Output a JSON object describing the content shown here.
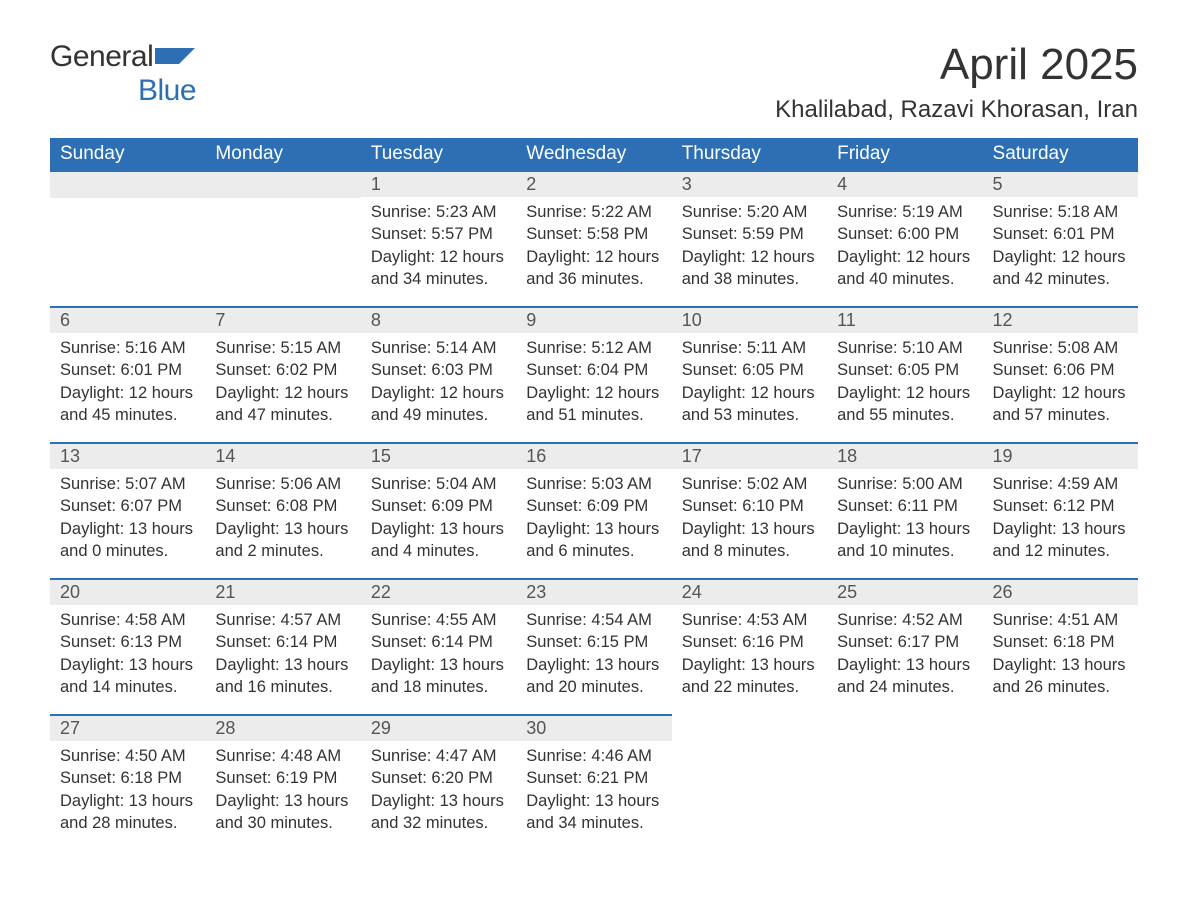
{
  "logo": {
    "line1": "General",
    "line2": "Blue",
    "icon_color": "#2d6fb4"
  },
  "header": {
    "month_title": "April 2025",
    "location": "Khalilabad, Razavi Khorasan, Iran"
  },
  "colors": {
    "header_bg": "#2d6fb4",
    "header_fg": "#ffffff",
    "daynum_bg": "#ececec",
    "row_border": "#2d6fb4",
    "text": "#333333",
    "page_bg": "#ffffff"
  },
  "weekdays": [
    "Sunday",
    "Monday",
    "Tuesday",
    "Wednesday",
    "Thursday",
    "Friday",
    "Saturday"
  ],
  "label_sunrise": "Sunrise: ",
  "label_sunset": "Sunset: ",
  "label_daylight": "Daylight: ",
  "weeks": [
    [
      null,
      null,
      {
        "n": "1",
        "sunrise": "5:23 AM",
        "sunset": "5:57 PM",
        "daylight": "12 hours and 34 minutes."
      },
      {
        "n": "2",
        "sunrise": "5:22 AM",
        "sunset": "5:58 PM",
        "daylight": "12 hours and 36 minutes."
      },
      {
        "n": "3",
        "sunrise": "5:20 AM",
        "sunset": "5:59 PM",
        "daylight": "12 hours and 38 minutes."
      },
      {
        "n": "4",
        "sunrise": "5:19 AM",
        "sunset": "6:00 PM",
        "daylight": "12 hours and 40 minutes."
      },
      {
        "n": "5",
        "sunrise": "5:18 AM",
        "sunset": "6:01 PM",
        "daylight": "12 hours and 42 minutes."
      }
    ],
    [
      {
        "n": "6",
        "sunrise": "5:16 AM",
        "sunset": "6:01 PM",
        "daylight": "12 hours and 45 minutes."
      },
      {
        "n": "7",
        "sunrise": "5:15 AM",
        "sunset": "6:02 PM",
        "daylight": "12 hours and 47 minutes."
      },
      {
        "n": "8",
        "sunrise": "5:14 AM",
        "sunset": "6:03 PM",
        "daylight": "12 hours and 49 minutes."
      },
      {
        "n": "9",
        "sunrise": "5:12 AM",
        "sunset": "6:04 PM",
        "daylight": "12 hours and 51 minutes."
      },
      {
        "n": "10",
        "sunrise": "5:11 AM",
        "sunset": "6:05 PM",
        "daylight": "12 hours and 53 minutes."
      },
      {
        "n": "11",
        "sunrise": "5:10 AM",
        "sunset": "6:05 PM",
        "daylight": "12 hours and 55 minutes."
      },
      {
        "n": "12",
        "sunrise": "5:08 AM",
        "sunset": "6:06 PM",
        "daylight": "12 hours and 57 minutes."
      }
    ],
    [
      {
        "n": "13",
        "sunrise": "5:07 AM",
        "sunset": "6:07 PM",
        "daylight": "13 hours and 0 minutes."
      },
      {
        "n": "14",
        "sunrise": "5:06 AM",
        "sunset": "6:08 PM",
        "daylight": "13 hours and 2 minutes."
      },
      {
        "n": "15",
        "sunrise": "5:04 AM",
        "sunset": "6:09 PM",
        "daylight": "13 hours and 4 minutes."
      },
      {
        "n": "16",
        "sunrise": "5:03 AM",
        "sunset": "6:09 PM",
        "daylight": "13 hours and 6 minutes."
      },
      {
        "n": "17",
        "sunrise": "5:02 AM",
        "sunset": "6:10 PM",
        "daylight": "13 hours and 8 minutes."
      },
      {
        "n": "18",
        "sunrise": "5:00 AM",
        "sunset": "6:11 PM",
        "daylight": "13 hours and 10 minutes."
      },
      {
        "n": "19",
        "sunrise": "4:59 AM",
        "sunset": "6:12 PM",
        "daylight": "13 hours and 12 minutes."
      }
    ],
    [
      {
        "n": "20",
        "sunrise": "4:58 AM",
        "sunset": "6:13 PM",
        "daylight": "13 hours and 14 minutes."
      },
      {
        "n": "21",
        "sunrise": "4:57 AM",
        "sunset": "6:14 PM",
        "daylight": "13 hours and 16 minutes."
      },
      {
        "n": "22",
        "sunrise": "4:55 AM",
        "sunset": "6:14 PM",
        "daylight": "13 hours and 18 minutes."
      },
      {
        "n": "23",
        "sunrise": "4:54 AM",
        "sunset": "6:15 PM",
        "daylight": "13 hours and 20 minutes."
      },
      {
        "n": "24",
        "sunrise": "4:53 AM",
        "sunset": "6:16 PM",
        "daylight": "13 hours and 22 minutes."
      },
      {
        "n": "25",
        "sunrise": "4:52 AM",
        "sunset": "6:17 PM",
        "daylight": "13 hours and 24 minutes."
      },
      {
        "n": "26",
        "sunrise": "4:51 AM",
        "sunset": "6:18 PM",
        "daylight": "13 hours and 26 minutes."
      }
    ],
    [
      {
        "n": "27",
        "sunrise": "4:50 AM",
        "sunset": "6:18 PM",
        "daylight": "13 hours and 28 minutes."
      },
      {
        "n": "28",
        "sunrise": "4:48 AM",
        "sunset": "6:19 PM",
        "daylight": "13 hours and 30 minutes."
      },
      {
        "n": "29",
        "sunrise": "4:47 AM",
        "sunset": "6:20 PM",
        "daylight": "13 hours and 32 minutes."
      },
      {
        "n": "30",
        "sunrise": "4:46 AM",
        "sunset": "6:21 PM",
        "daylight": "13 hours and 34 minutes."
      },
      null,
      null,
      null
    ]
  ]
}
